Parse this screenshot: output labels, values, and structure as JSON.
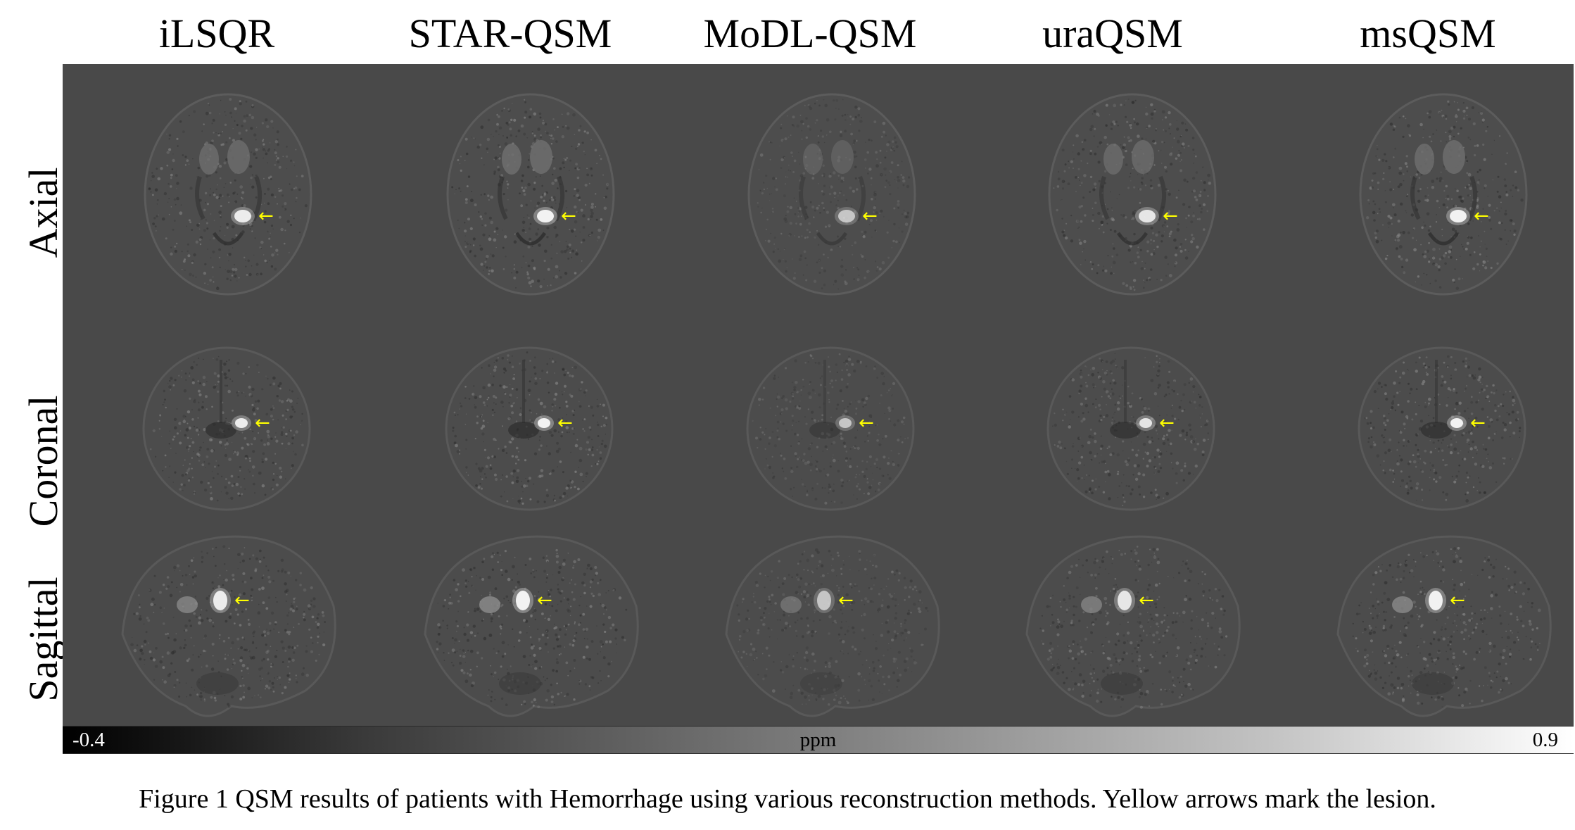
{
  "figure": {
    "methods": [
      "iLSQR",
      "STAR-QSM",
      "MoDL-QSM",
      "uraQSM",
      "msQSM"
    ],
    "views": [
      "Axial",
      "Coronal",
      "Sagittal"
    ],
    "lesion_marker": {
      "glyph": "←",
      "color": "#ffff00"
    },
    "colorbar": {
      "min_label": "-0.4",
      "max_label": "0.9",
      "unit": "ppm",
      "colormap": "grayscale"
    },
    "caption": "Figure 1 QSM results of patients with Hemorrhage using various reconstruction methods. Yellow arrows mark the lesion."
  }
}
